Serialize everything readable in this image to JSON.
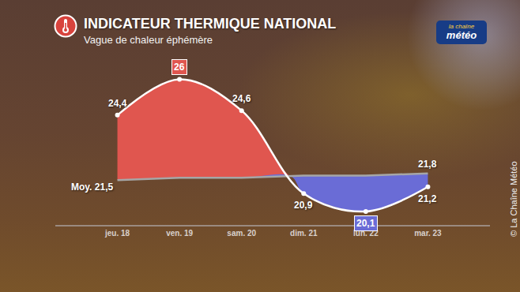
{
  "chart_data": {
    "type": "line",
    "title": "INDICATEUR THERMIQUE NATIONAL",
    "subtitle": "Vague de chaleur éphémère",
    "logo": [
      "la chaîne",
      "météo"
    ],
    "source": "© La Chaîne Météo",
    "categories": [
      "jeu. 18",
      "ven. 19",
      "sam. 20",
      "dim. 21",
      "lun. 22",
      "mar. 23"
    ],
    "series": [
      {
        "color": "#ffffff",
        "values": [
          24.4,
          26,
          24.6,
          20.9,
          20.1,
          21.2
        ],
        "value_labels": [
          "24,4",
          "26",
          "24,6",
          "20,9",
          "20,1",
          "21,2"
        ]
      },
      {
        "color": "#a6a6a6",
        "values": [
          21.5,
          21.6,
          21.6,
          21.7,
          21.7,
          21.8
        ],
        "value_labels": [
          "Moy. 21,5",
          null,
          null,
          null,
          null,
          "21,8"
        ]
      }
    ],
    "ylim": [
      19.5,
      27
    ],
    "data_labels": true,
    "tick_labels": "x",
    "grid": false
  }
}
